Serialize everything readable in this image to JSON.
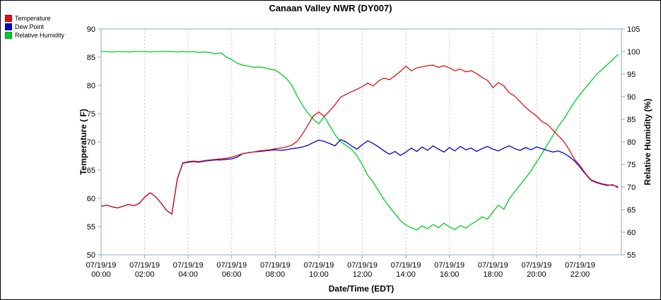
{
  "chart_data": {
    "type": "line",
    "title": "Canaan Valley NWR (DY007)",
    "xlabel": "Date/Time (EDT)",
    "ylabel_left": "Temperature ( F)",
    "ylabel_right": "Relative Humidity (%)",
    "x_unit": "hours_after_midnight_2019_07_19",
    "x_range": [
      0,
      23.9
    ],
    "x_step_hours": 0.25,
    "grid": "vertical-dotted",
    "legend_position": "top-left",
    "y_left_range": [
      50,
      90
    ],
    "y_left_ticks": [
      50,
      55,
      60,
      65,
      70,
      75,
      80,
      85,
      90
    ],
    "y_right_range": [
      55,
      105
    ],
    "y_right_ticks": [
      55,
      60,
      65,
      70,
      75,
      80,
      85,
      90,
      95,
      100,
      105
    ],
    "x_ticks": [
      {
        "hour": 0,
        "date": "07/19/19",
        "time": "00:00"
      },
      {
        "hour": 2,
        "date": "07/19/19",
        "time": "02:00"
      },
      {
        "hour": 4,
        "date": "07/19/19",
        "time": "04:00"
      },
      {
        "hour": 6,
        "date": "07/19/19",
        "time": "06:00"
      },
      {
        "hour": 8,
        "date": "07/19/19",
        "time": "08:00"
      },
      {
        "hour": 10,
        "date": "07/19/19",
        "time": "10:00"
      },
      {
        "hour": 12,
        "date": "07/19/19",
        "time": "12:00"
      },
      {
        "hour": 14,
        "date": "07/19/19",
        "time": "14:00"
      },
      {
        "hour": 16,
        "date": "07/19/19",
        "time": "16:00"
      },
      {
        "hour": 18,
        "date": "07/19/19",
        "time": "18:00"
      },
      {
        "hour": 20,
        "date": "07/19/19",
        "time": "20:00"
      },
      {
        "hour": 22,
        "date": "07/19/19",
        "time": "22:00"
      }
    ],
    "series": [
      {
        "name": "Temperature",
        "axis": "left",
        "color": "#dd1111",
        "values": [
          58.6,
          58.8,
          58.5,
          58.3,
          58.6,
          58.9,
          58.7,
          59.1,
          60.2,
          61.0,
          60.3,
          59.2,
          57.9,
          57.2,
          63.5,
          66.3,
          66.5,
          66.6,
          66.5,
          66.7,
          66.8,
          66.9,
          67.0,
          67.1,
          67.3,
          67.6,
          67.9,
          68.1,
          68.2,
          68.4,
          68.5,
          68.6,
          68.8,
          68.9,
          69.1,
          69.4,
          70.1,
          71.4,
          73.0,
          74.6,
          75.3,
          74.5,
          75.5,
          76.6,
          77.9,
          78.4,
          78.9,
          79.3,
          79.8,
          80.4,
          79.9,
          80.8,
          81.3,
          81.0,
          81.7,
          82.5,
          83.4,
          82.6,
          83.1,
          83.3,
          83.5,
          83.6,
          83.2,
          83.5,
          83.1,
          82.6,
          82.9,
          82.4,
          82.6,
          82.1,
          81.4,
          80.9,
          79.6,
          80.5,
          79.9,
          78.7,
          78.1,
          77.1,
          76.1,
          75.3,
          74.6,
          73.6,
          73.1,
          72.1,
          71.1,
          70.1,
          68.6,
          66.9,
          65.8,
          64.4,
          63.3,
          62.9,
          62.6,
          62.4,
          62.3,
          62.1
        ]
      },
      {
        "name": "Dew Point",
        "axis": "left",
        "color": "#0000cc",
        "values": [
          58.6,
          58.8,
          58.5,
          58.3,
          58.6,
          58.9,
          58.7,
          59.1,
          60.2,
          61.0,
          60.3,
          59.2,
          57.9,
          57.2,
          63.4,
          66.2,
          66.4,
          66.5,
          66.4,
          66.6,
          66.7,
          66.8,
          66.8,
          66.9,
          67.0,
          67.3,
          67.9,
          68.1,
          68.2,
          68.3,
          68.4,
          68.5,
          68.6,
          68.5,
          68.6,
          68.8,
          68.9,
          69.1,
          69.4,
          69.9,
          70.3,
          70.1,
          69.7,
          69.3,
          70.4,
          70.0,
          69.3,
          68.7,
          69.5,
          70.2,
          69.7,
          69.1,
          68.4,
          67.8,
          68.3,
          67.6,
          68.2,
          68.9,
          68.3,
          69.1,
          68.5,
          69.3,
          68.7,
          68.2,
          69.0,
          68.4,
          69.2,
          68.6,
          68.9,
          68.3,
          68.8,
          69.2,
          68.7,
          68.4,
          68.9,
          69.3,
          68.8,
          68.5,
          69.0,
          68.6,
          69.1,
          68.8,
          68.5,
          68.2,
          68.4,
          68.0,
          67.4,
          66.6,
          65.5,
          64.3,
          63.2,
          62.8,
          62.5,
          62.3,
          62.4,
          61.9
        ]
      },
      {
        "name": "Relative Humidity",
        "axis": "right",
        "color": "#00cc22",
        "values": [
          100.0,
          100.0,
          99.9,
          100.0,
          100.0,
          99.9,
          100.0,
          100.0,
          100.0,
          99.9,
          100.0,
          100.0,
          100.0,
          100.0,
          99.9,
          100.0,
          99.9,
          100.0,
          99.8,
          99.9,
          99.8,
          99.5,
          99.7,
          98.8,
          98.2,
          97.4,
          97.0,
          96.8,
          96.5,
          96.6,
          96.4,
          96.1,
          95.9,
          95.1,
          94.1,
          92.6,
          90.2,
          88.1,
          86.4,
          85.0,
          84.0,
          85.6,
          83.6,
          81.6,
          80.1,
          79.2,
          78.4,
          77.0,
          74.9,
          72.6,
          71.1,
          69.1,
          67.2,
          65.6,
          64.1,
          62.6,
          61.6,
          61.0,
          60.5,
          61.4,
          60.8,
          61.7,
          61.0,
          62.0,
          61.2,
          60.6,
          61.5,
          60.9,
          61.8,
          62.5,
          63.4,
          62.9,
          64.5,
          66.0,
          65.1,
          67.4,
          69.0,
          70.5,
          72.0,
          73.6,
          75.5,
          77.4,
          79.4,
          81.4,
          83.4,
          85.0,
          87.0,
          88.9,
          90.5,
          92.0,
          93.4,
          94.9,
          96.0,
          97.1,
          98.2,
          99.4
        ]
      }
    ]
  }
}
